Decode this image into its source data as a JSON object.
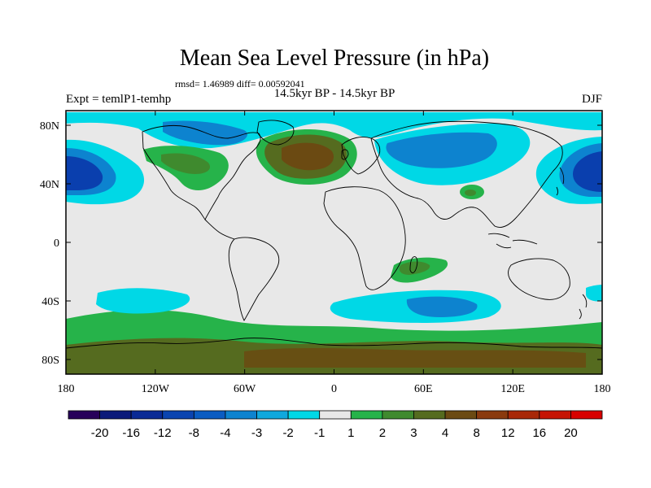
{
  "chart_data": {
    "type": "heatmap",
    "title": "Mean Sea Level Pressure (in hPa)",
    "stats_line": "rmsd= 1.46989 diff= 0.00592041",
    "subtitle": "14.5kyr BP - 14.5kyr BP",
    "left_label": "Expt = temlP1-temhp",
    "right_label": "DJF",
    "x_axis": {
      "range": [
        -180,
        180
      ],
      "ticks": [
        -180,
        -120,
        -60,
        0,
        60,
        120,
        180
      ],
      "tick_labels": [
        "180",
        "120W",
        "60W",
        "0",
        "60E",
        "120E",
        "180"
      ]
    },
    "y_axis": {
      "range": [
        -90,
        90
      ],
      "ticks": [
        80,
        40,
        0,
        -40,
        -80
      ],
      "tick_labels": [
        "80N",
        "40N",
        "0",
        "40S",
        "80S"
      ]
    },
    "colorbar": {
      "labels": [
        "-20",
        "-16",
        "-12",
        "-8",
        "-4",
        "-3",
        "-2",
        "-1",
        "1",
        "2",
        "3",
        "4",
        "8",
        "12",
        "16",
        "20"
      ],
      "colors": [
        "#27005a",
        "#0b1a7a",
        "#0a2a95",
        "#0b44b0",
        "#0a5cc2",
        "#0d83cf",
        "#10a8dd",
        "#00d8e6",
        "#e8e8e8",
        "#26b34a",
        "#3f8a2e",
        "#556b1f",
        "#6b4a12",
        "#8a3a0e",
        "#a82808",
        "#c61404",
        "#d80000"
      ]
    },
    "anomaly_regions": [
      {
        "name": "north-pacific-low-west",
        "lon": -168,
        "lat": 38,
        "value": -8
      },
      {
        "name": "north-pacific-low-east",
        "lon": 168,
        "lat": 38,
        "value": -8
      },
      {
        "name": "north-atlantic-high",
        "lon": -30,
        "lat": 58,
        "value": 4
      },
      {
        "name": "eurasia-low",
        "lon": 75,
        "lat": 55,
        "value": -3
      },
      {
        "name": "arctic-canada-low",
        "lon": -100,
        "lat": 78,
        "value": -3
      },
      {
        "name": "north-america-high",
        "lon": -100,
        "lat": 52,
        "value": 2
      },
      {
        "name": "central-asia-high",
        "lon": 102,
        "lat": 32,
        "value": 2
      },
      {
        "name": "south-africa-high",
        "lon": 45,
        "lat": -12,
        "value": 2
      },
      {
        "name": "south-pacific-low",
        "lon": -145,
        "lat": -38,
        "value": -2
      },
      {
        "name": "south-indian-low",
        "lon": 80,
        "lat": -42,
        "value": -3
      },
      {
        "name": "southern-ocean-high-belt",
        "lon": 0,
        "lat": -60,
        "value": 2
      },
      {
        "name": "antarctica-high",
        "lon": 0,
        "lat": -78,
        "value": 4
      }
    ]
  }
}
